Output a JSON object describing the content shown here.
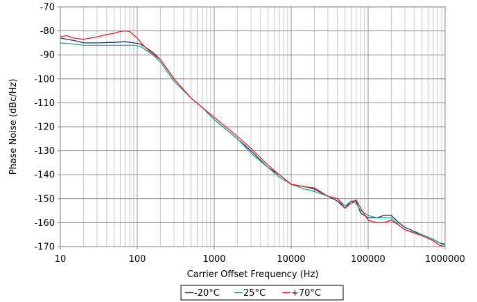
{
  "chart_data": {
    "type": "line",
    "xlabel": "Carrier Offset Frequency (Hz)",
    "ylabel": "Phase Noise (dBc/Hz)",
    "x_scale": "log",
    "xlim": [
      10,
      1000000
    ],
    "ylim": [
      -170,
      -70
    ],
    "x_ticks": [
      10,
      100,
      1000,
      10000,
      100000,
      1000000
    ],
    "x_tick_labels": [
      "10",
      "100",
      "1000",
      "10000",
      "100000",
      "1000000"
    ],
    "y_ticks": [
      -70,
      -80,
      -90,
      -100,
      -110,
      -120,
      -130,
      -140,
      -150,
      -160,
      -170
    ],
    "y_tick_labels": [
      "-70",
      "-80",
      "-90",
      "-100",
      "-110",
      "-120",
      "-130",
      "-140",
      "-150",
      "-160",
      "-170"
    ],
    "grid": true,
    "legend_position": "bottom-center",
    "series": [
      {
        "name": "-20°C",
        "color": "#1f2f7a",
        "points": [
          [
            10,
            -83
          ],
          [
            15,
            -84
          ],
          [
            20,
            -85
          ],
          [
            30,
            -85
          ],
          [
            50,
            -84.8
          ],
          [
            70,
            -84.5
          ],
          [
            90,
            -85
          ],
          [
            110,
            -85.5
          ],
          [
            130,
            -87
          ],
          [
            160,
            -89
          ],
          [
            200,
            -92
          ],
          [
            300,
            -100
          ],
          [
            500,
            -108
          ],
          [
            700,
            -112
          ],
          [
            1000,
            -117
          ],
          [
            2000,
            -125
          ],
          [
            3000,
            -130
          ],
          [
            5000,
            -137
          ],
          [
            7000,
            -140
          ],
          [
            10000,
            -144
          ],
          [
            15000,
            -145
          ],
          [
            20000,
            -146
          ],
          [
            30000,
            -149
          ],
          [
            40000,
            -151
          ],
          [
            50000,
            -154
          ],
          [
            60000,
            -151
          ],
          [
            70000,
            -151
          ],
          [
            80000,
            -156
          ],
          [
            100000,
            -158
          ],
          [
            130000,
            -158
          ],
          [
            160000,
            -157
          ],
          [
            200000,
            -157
          ],
          [
            250000,
            -160
          ],
          [
            300000,
            -162
          ],
          [
            500000,
            -165
          ],
          [
            700000,
            -167
          ],
          [
            850000,
            -168.5
          ],
          [
            1000000,
            -169
          ]
        ]
      },
      {
        "name": "25°C",
        "color": "#1aa878",
        "points": [
          [
            10,
            -85
          ],
          [
            15,
            -85.5
          ],
          [
            20,
            -86
          ],
          [
            30,
            -86
          ],
          [
            50,
            -86
          ],
          [
            70,
            -86
          ],
          [
            90,
            -86
          ],
          [
            110,
            -86.5
          ],
          [
            130,
            -88
          ],
          [
            160,
            -90
          ],
          [
            200,
            -93
          ],
          [
            300,
            -101
          ],
          [
            500,
            -108
          ],
          [
            700,
            -112
          ],
          [
            1000,
            -117
          ],
          [
            2000,
            -125
          ],
          [
            3000,
            -131
          ],
          [
            5000,
            -137
          ],
          [
            7000,
            -141
          ],
          [
            10000,
            -144
          ],
          [
            15000,
            -146
          ],
          [
            20000,
            -147
          ],
          [
            30000,
            -149
          ],
          [
            40000,
            -150
          ],
          [
            50000,
            -153
          ],
          [
            60000,
            -151
          ],
          [
            70000,
            -152
          ],
          [
            80000,
            -155
          ],
          [
            100000,
            -157
          ],
          [
            130000,
            -158
          ],
          [
            160000,
            -158
          ],
          [
            200000,
            -158
          ],
          [
            250000,
            -161
          ],
          [
            300000,
            -163
          ],
          [
            500000,
            -165
          ],
          [
            700000,
            -167
          ],
          [
            850000,
            -168.5
          ],
          [
            1000000,
            -169.5
          ]
        ]
      },
      {
        "name": "+70°C",
        "color": "#e8222a",
        "points": [
          [
            10,
            -82.5
          ],
          [
            12,
            -82
          ],
          [
            15,
            -83
          ],
          [
            20,
            -83.5
          ],
          [
            30,
            -82.5
          ],
          [
            40,
            -81.5
          ],
          [
            50,
            -81
          ],
          [
            60,
            -80.2
          ],
          [
            70,
            -80
          ],
          [
            80,
            -80.3
          ],
          [
            100,
            -83
          ],
          [
            120,
            -86
          ],
          [
            150,
            -89
          ],
          [
            200,
            -92
          ],
          [
            300,
            -100
          ],
          [
            500,
            -108
          ],
          [
            700,
            -112
          ],
          [
            1000,
            -116
          ],
          [
            2000,
            -124
          ],
          [
            3000,
            -129
          ],
          [
            5000,
            -136
          ],
          [
            7000,
            -140
          ],
          [
            10000,
            -144
          ],
          [
            15000,
            -145
          ],
          [
            20000,
            -145.5
          ],
          [
            30000,
            -149
          ],
          [
            40000,
            -150
          ],
          [
            50000,
            -154
          ],
          [
            60000,
            -152
          ],
          [
            70000,
            -150.5
          ],
          [
            80000,
            -154
          ],
          [
            100000,
            -159
          ],
          [
            130000,
            -160
          ],
          [
            160000,
            -160
          ],
          [
            200000,
            -159
          ],
          [
            250000,
            -161
          ],
          [
            300000,
            -163
          ],
          [
            500000,
            -165.5
          ],
          [
            700000,
            -167.5
          ],
          [
            850000,
            -169.5
          ],
          [
            1000000,
            -170
          ]
        ]
      }
    ]
  }
}
